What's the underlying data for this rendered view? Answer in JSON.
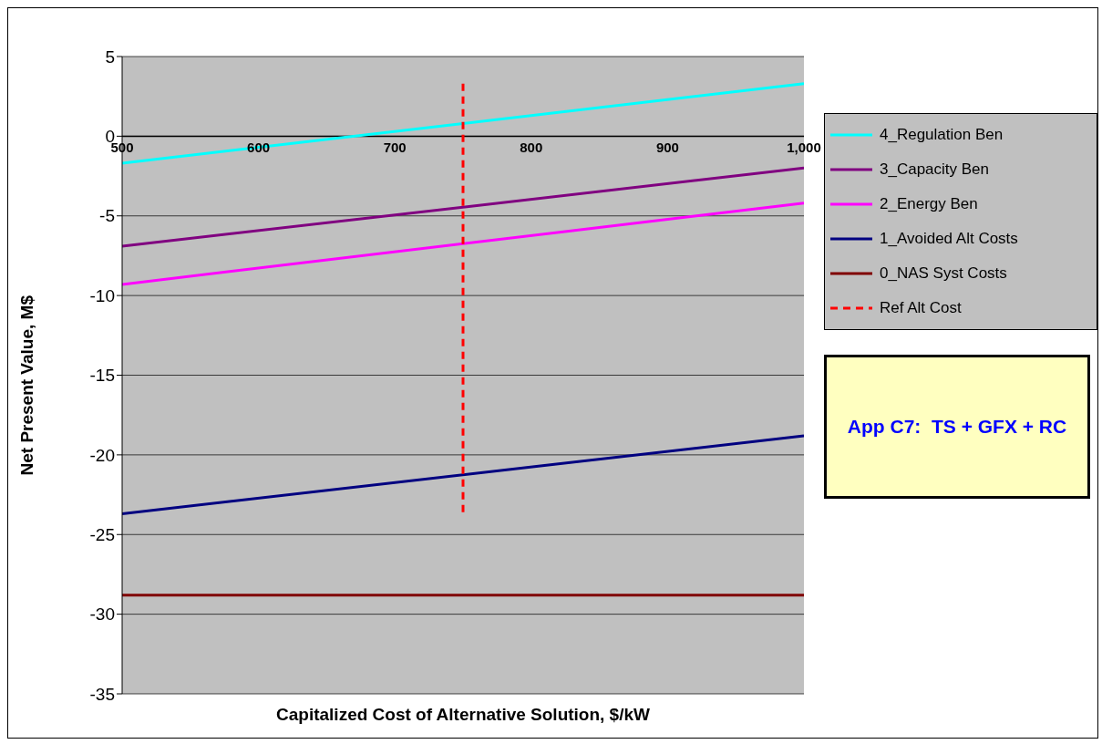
{
  "chart_data": {
    "type": "line",
    "xlabel": "Capitalized Cost of Alternative Solution, $/kW",
    "ylabel": "Net Present Value, M$",
    "xlim": [
      500,
      1000
    ],
    "xticks": [
      500,
      600,
      700,
      800,
      900,
      {
        "value": 1000,
        "label": "1,000"
      }
    ],
    "ylim": [
      -35,
      5
    ],
    "yticks": [
      -35,
      -30,
      -25,
      -20,
      -15,
      -10,
      -5,
      0,
      5
    ],
    "grid": "y",
    "legend": "right",
    "line_style": "solid",
    "marker": "none",
    "series": [
      {
        "name": "4_Regulation Ben",
        "color": "#00ffff",
        "x": [
          500,
          1000
        ],
        "values": [
          -1.7,
          3.3
        ]
      },
      {
        "name": "3_Capacity Ben",
        "color": "#800080",
        "x": [
          500,
          1000
        ],
        "values": [
          -6.9,
          -2.0
        ]
      },
      {
        "name": "2_Energy Ben",
        "color": "#ff00ff",
        "x": [
          500,
          1000
        ],
        "values": [
          -9.3,
          -4.2
        ]
      },
      {
        "name": "1_Avoided Alt Costs",
        "color": "#000080",
        "x": [
          500,
          1000
        ],
        "values": [
          -23.7,
          -18.8
        ]
      },
      {
        "name": "0_NAS Syst Costs",
        "color": "#800000",
        "x": [
          500,
          1000
        ],
        "values": [
          -28.8,
          -28.8
        ]
      },
      {
        "name": "Ref Alt Cost",
        "color": "#ff0000",
        "x": [
          750,
          750
        ],
        "values": [
          3.3,
          -23.7
        ],
        "line_style": "dashed"
      }
    ],
    "annotations": [
      "App C7:  TS + GFX + RC"
    ]
  }
}
